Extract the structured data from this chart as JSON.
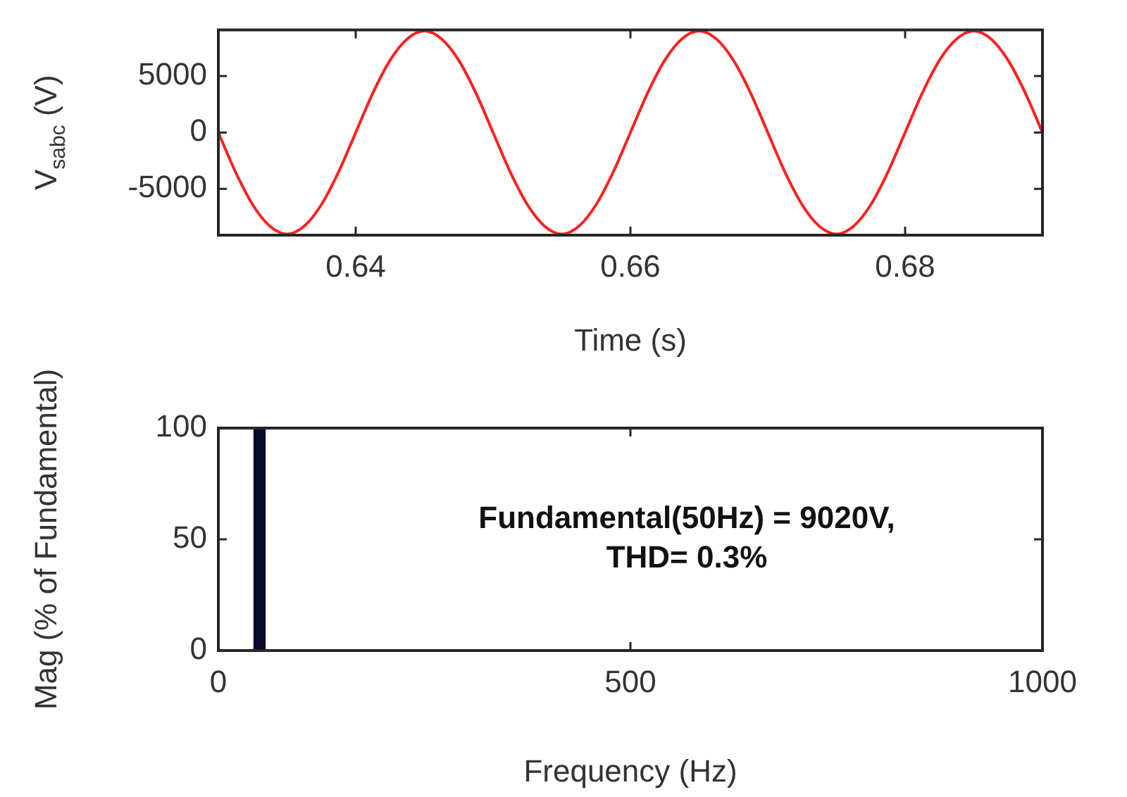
{
  "chart_data": [
    {
      "type": "line",
      "xlabel": "Time (s)",
      "ylabel": "V$_{sabc}$ (V)",
      "marker": "none",
      "grid": false,
      "xlim": [
        0.63,
        0.69
      ],
      "xticks": [
        0.64,
        0.66,
        0.68
      ],
      "ylim": [
        -9100,
        9100
      ],
      "yticks": [
        -5000,
        0,
        5000
      ],
      "x": [
        0.63,
        0.63125,
        0.6325,
        0.63375,
        0.635,
        0.63625,
        0.6375,
        0.63875,
        0.64,
        0.64125,
        0.6425,
        0.64375,
        0.645,
        0.64625,
        0.6475,
        0.64875,
        0.65,
        0.65125,
        0.6525,
        0.65375,
        0.655,
        0.65625,
        0.6575,
        0.65875,
        0.66,
        0.66125,
        0.6625,
        0.66375,
        0.665,
        0.66625,
        0.6675,
        0.66875,
        0.67,
        0.67125,
        0.6725,
        0.67375,
        0.675,
        0.67625,
        0.6775,
        0.67875,
        0.68,
        0.68125,
        0.6825,
        0.68375,
        0.685,
        0.68625,
        0.6875,
        0.68875,
        0.69
      ],
      "series": [
        {
          "color": "#ff2020",
          "values": [
            0,
            -3500,
            -6400,
            -8300,
            -9000,
            -8300,
            -6400,
            -3500,
            0,
            3500,
            6400,
            8300,
            9000,
            8300,
            6400,
            3500,
            0,
            -3500,
            -6400,
            -8300,
            -9000,
            -8300,
            -6400,
            -3500,
            0,
            3500,
            6400,
            8300,
            9000,
            8300,
            6400,
            3500,
            0,
            -3500,
            -6400,
            -8300,
            -9000,
            -8300,
            -6400,
            -3500,
            0,
            3500,
            6400,
            8300,
            9000,
            8300,
            6400,
            3500,
            0
          ]
        }
      ]
    },
    {
      "type": "bar",
      "xlabel": "Frequency (Hz)",
      "ylabel": "Mag (% of Fundamental)",
      "grid": false,
      "xlim": [
        0,
        1000
      ],
      "xticks": [
        0,
        500,
        1000
      ],
      "ylim": [
        0,
        100
      ],
      "yticks": [
        0,
        50,
        100
      ],
      "x": [
        50
      ],
      "series": [
        {
          "color": "#0a0a30",
          "values": [
            100
          ]
        }
      ],
      "annotations": [
        "Fundamental(50Hz) = 9020V,\nTHD= 0.3%"
      ]
    }
  ]
}
